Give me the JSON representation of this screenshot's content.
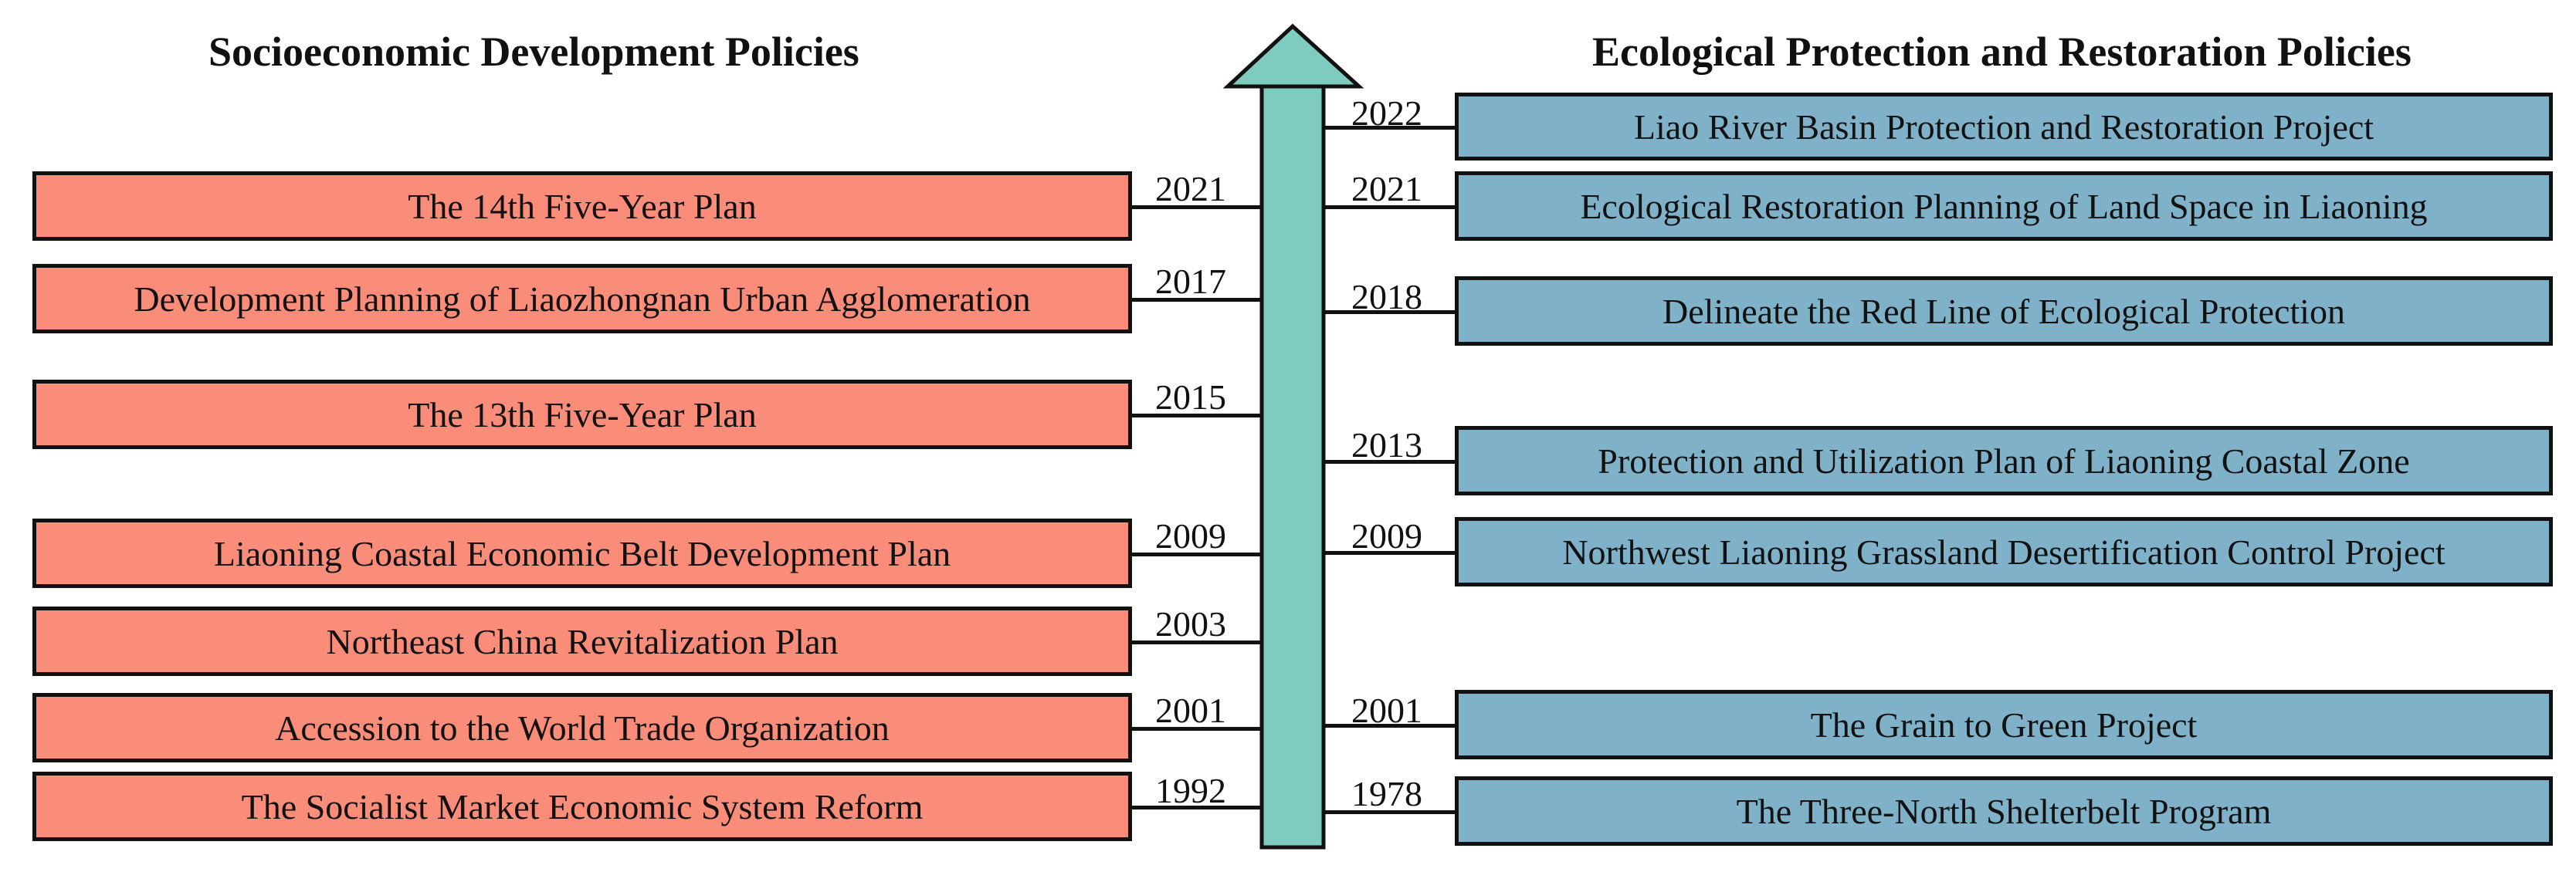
{
  "headings": {
    "left": "Socioeconomic Development Policies",
    "right": "Ecological Protection and Restoration Policies"
  },
  "colors": {
    "left_box": "#fa8c7a",
    "right_box": "#7fb2c8",
    "timeline_arrow": "#7fcbbf"
  },
  "socioeconomic": [
    {
      "year": "2021",
      "label": "The 14th Five-Year Plan"
    },
    {
      "year": "2017",
      "label": "Development Planning of Liaozhongnan Urban Agglomeration"
    },
    {
      "year": "2015",
      "label": "The 13th Five-Year Plan"
    },
    {
      "year": "2009",
      "label": "Liaoning Coastal Economic Belt Development Plan"
    },
    {
      "year": "2003",
      "label": "Northeast China Revitalization Plan"
    },
    {
      "year": "2001",
      "label": "Accession to the World Trade Organization"
    },
    {
      "year": "1992",
      "label": "The Socialist Market Economic System Reform"
    }
  ],
  "ecological": [
    {
      "year": "2022",
      "label": "Liao River Basin Protection and Restoration Project"
    },
    {
      "year": "2021",
      "label": "Ecological Restoration Planning of Land Space in Liaoning"
    },
    {
      "year": "2018",
      "label": "Delineate the Red Line of Ecological Protection"
    },
    {
      "year": "2013",
      "label": "Protection and Utilization Plan of Liaoning Coastal Zone"
    },
    {
      "year": "2009",
      "label": "Northwest Liaoning Grassland Desertification Control Project"
    },
    {
      "year": "2001",
      "label": "The Grain to Green Project"
    },
    {
      "year": "1978",
      "label": "The Three-North Shelterbelt Program"
    }
  ]
}
